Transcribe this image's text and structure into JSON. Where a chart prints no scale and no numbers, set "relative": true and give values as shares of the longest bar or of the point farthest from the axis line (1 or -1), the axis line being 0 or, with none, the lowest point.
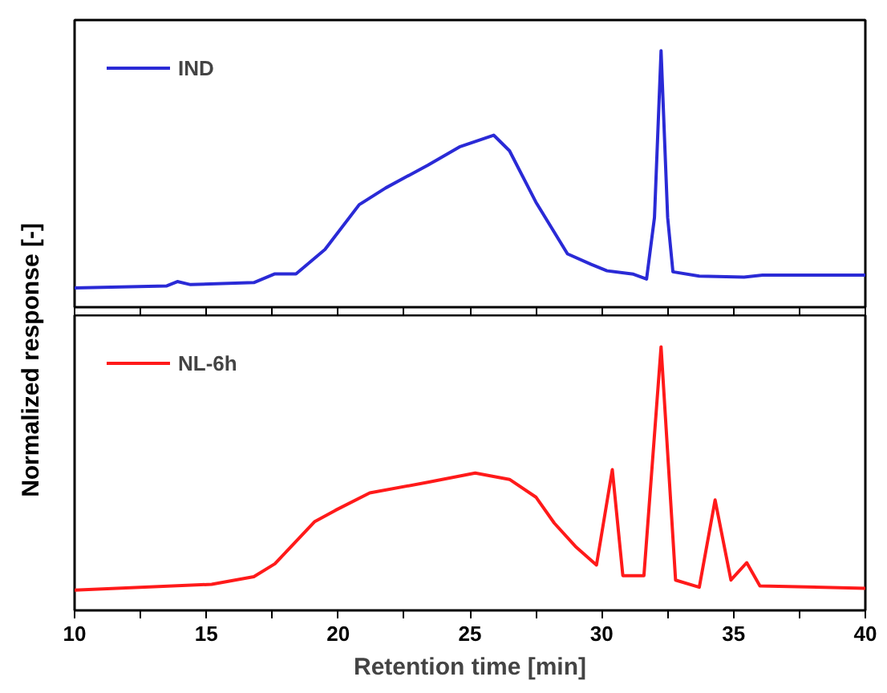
{
  "chart_data": [
    {
      "type": "line",
      "relative": true,
      "ylabel": "Normalized response [-]",
      "xlim": [
        10,
        40
      ],
      "xticks": [
        10,
        {
          "value": 12.5,
          "label": null
        },
        15,
        {
          "value": 17.5,
          "label": null
        },
        20,
        {
          "value": 22.5,
          "label": null
        },
        25,
        {
          "value": 27.5,
          "label": null
        },
        30,
        {
          "value": 32.5,
          "label": null
        },
        35,
        {
          "value": 37.5,
          "label": null
        },
        40
      ],
      "tick_labels": false,
      "legend": "top left",
      "grid": false,
      "series": [
        {
          "name": "IND",
          "color": "#2a2ad6",
          "x": [
            10,
            13.5,
            13.9,
            14.4,
            16.8,
            17.6,
            18.4,
            19.5,
            20.8,
            21.8,
            23.4,
            24.6,
            25.9,
            26.5,
            27.5,
            28.7,
            29.6,
            30.2,
            31.2,
            31.7,
            32.0,
            32.25,
            32.5,
            32.7,
            33.7,
            35.4,
            36.1,
            40
          ],
          "values": [
            0.075,
            0.083,
            0.1,
            0.088,
            0.096,
            0.13,
            0.13,
            0.225,
            0.4,
            0.465,
            0.554,
            0.625,
            0.671,
            0.61,
            0.41,
            0.208,
            0.167,
            0.142,
            0.129,
            0.11,
            0.35,
            1.0,
            0.35,
            0.138,
            0.121,
            0.117,
            0.125,
            0.125
          ]
        }
      ]
    },
    {
      "type": "line",
      "relative": true,
      "xlabel": "Retention time [min]",
      "xlim": [
        10,
        40
      ],
      "xticks": [
        10,
        {
          "value": 12.5,
          "label": null
        },
        15,
        {
          "value": 17.5,
          "label": null
        },
        20,
        {
          "value": 22.5,
          "label": null
        },
        25,
        {
          "value": 27.5,
          "label": null
        },
        30,
        {
          "value": 32.5,
          "label": null
        },
        35,
        {
          "value": 37.5,
          "label": null
        },
        40
      ],
      "tick_labels": "x",
      "legend": "top left",
      "grid": false,
      "series": [
        {
          "name": "NL-6h",
          "color": "#ff1a1a",
          "x": [
            10,
            15.2,
            16.8,
            17.6,
            19.1,
            19.9,
            21.2,
            23.4,
            25.2,
            26.5,
            27.5,
            28.2,
            29.0,
            29.8,
            30.4,
            30.8,
            31.6,
            32.25,
            32.8,
            33.7,
            34.3,
            34.9,
            35.5,
            36.0,
            40
          ],
          "values": [
            0.077,
            0.099,
            0.128,
            0.177,
            0.336,
            0.38,
            0.446,
            0.486,
            0.521,
            0.497,
            0.43,
            0.331,
            0.243,
            0.172,
            0.534,
            0.132,
            0.132,
            1.0,
            0.115,
            0.088,
            0.419,
            0.115,
            0.181,
            0.093,
            0.084
          ]
        }
      ]
    }
  ]
}
